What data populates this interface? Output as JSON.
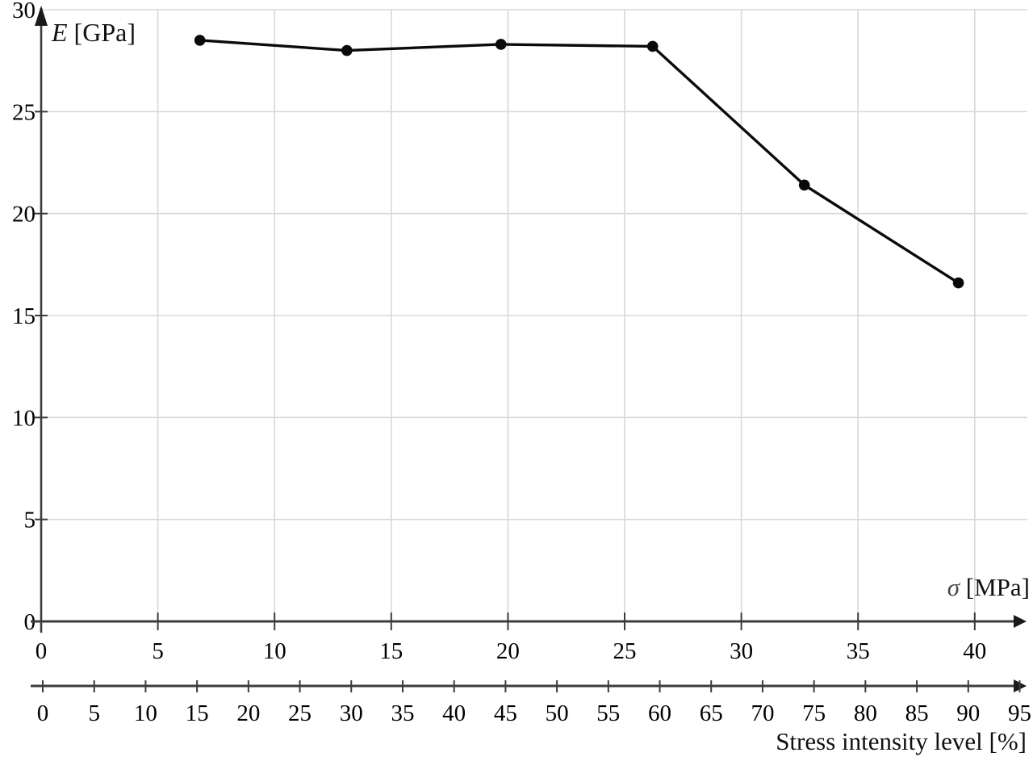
{
  "page": {
    "background": "#ffffff",
    "text_color": "#000000"
  },
  "chart_data": {
    "type": "line",
    "title": "",
    "x_axis": {
      "symbol": "σ",
      "unit_label": " [MPa]",
      "ticks": [
        0,
        5,
        10,
        15,
        20,
        25,
        30,
        35,
        40
      ],
      "range": [
        0,
        42.5
      ]
    },
    "y_axis": {
      "symbol": "E",
      "unit_label": " [GPa]",
      "ticks": [
        0,
        5,
        10,
        15,
        20,
        25,
        30
      ],
      "range": [
        0,
        30
      ]
    },
    "x2_axis": {
      "label": "Stress intensity level [%]",
      "ticks": [
        0,
        5,
        10,
        15,
        20,
        25,
        30,
        35,
        40,
        45,
        50,
        55,
        60,
        65,
        70,
        75,
        80,
        85,
        90,
        95
      ],
      "range": [
        0,
        97
      ]
    },
    "series": [
      {
        "name": "elastic-modulus-vs-stress",
        "marker": "circle",
        "color": "#0a0a0a",
        "points": [
          {
            "sigma_mpa": 6.8,
            "stress_level_pct": 15,
            "e_gpa": 28.5
          },
          {
            "sigma_mpa": 13.1,
            "stress_level_pct": 30,
            "e_gpa": 28.0
          },
          {
            "sigma_mpa": 19.7,
            "stress_level_pct": 45,
            "e_gpa": 28.3
          },
          {
            "sigma_mpa": 26.2,
            "stress_level_pct": 60,
            "e_gpa": 28.2
          },
          {
            "sigma_mpa": 32.7,
            "stress_level_pct": 75,
            "e_gpa": 21.4
          },
          {
            "sigma_mpa": 39.3,
            "stress_level_pct": 90,
            "e_gpa": 16.6
          }
        ]
      }
    ],
    "grid": {
      "show": true,
      "color": "#d8d8d8"
    },
    "axis_color": "#3c3c3c",
    "legend": {
      "show": false
    }
  }
}
